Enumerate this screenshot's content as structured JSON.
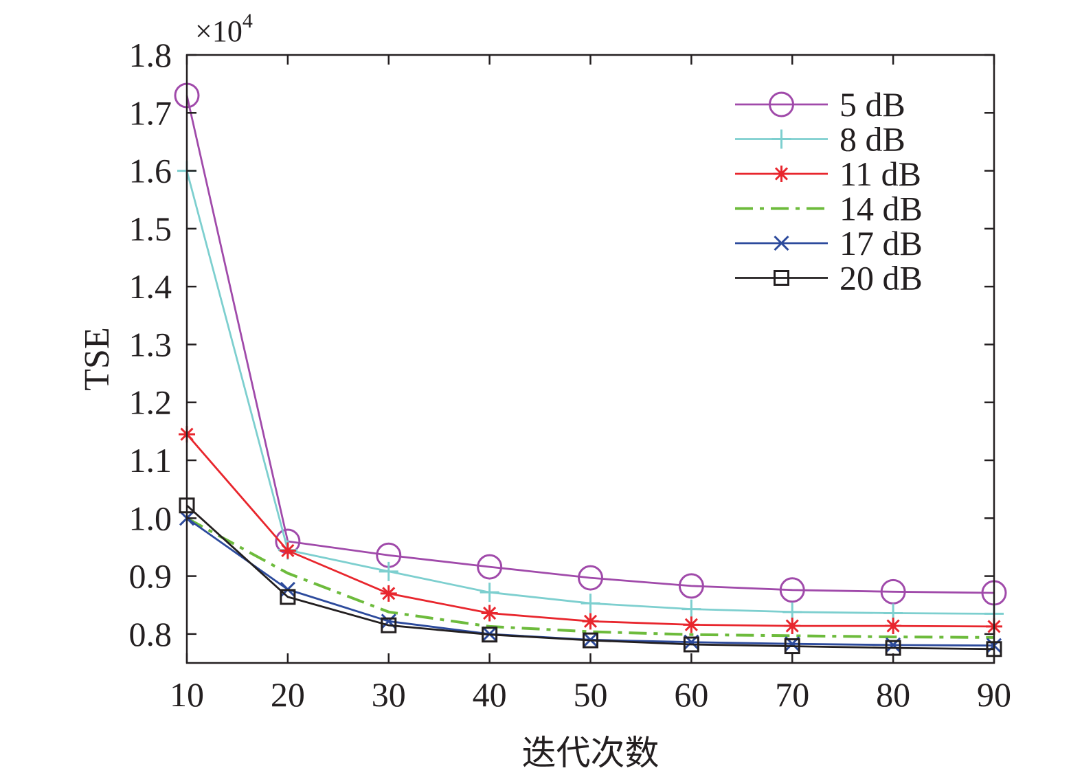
{
  "chart_data": {
    "type": "line",
    "xlabel": "迭代次数",
    "ylabel": "TSE",
    "y_multiplier": {
      "base": "×10",
      "exponent": "4"
    },
    "xlim": [
      10,
      90
    ],
    "ylim": [
      0.75,
      1.8
    ],
    "x_ticks": [
      10,
      20,
      30,
      40,
      50,
      60,
      70,
      80,
      90
    ],
    "x_tick_labels": [
      "10",
      "20",
      "30",
      "40",
      "50",
      "60",
      "70",
      "80",
      "90"
    ],
    "y_ticks": [
      0.8,
      0.9,
      1.0,
      1.1,
      1.2,
      1.3,
      1.4,
      1.5,
      1.6,
      1.7,
      1.8
    ],
    "y_tick_labels": [
      "0.8",
      "0.9",
      "1.0",
      "1.1",
      "1.2",
      "1.3",
      "1.4",
      "1.5",
      "1.6",
      "1.7",
      "1.8"
    ],
    "grid": false,
    "legend_position": "top-right",
    "x": [
      10,
      20,
      30,
      40,
      50,
      60,
      70,
      80,
      90
    ],
    "series": [
      {
        "name": "5 dB",
        "color": "#a04aaa",
        "marker": "circle",
        "dash": "solid",
        "values": [
          1.73,
          0.96,
          0.936,
          0.916,
          0.897,
          0.883,
          0.876,
          0.873,
          0.871
        ]
      },
      {
        "name": "8 dB",
        "color": "#7dcfcf",
        "marker": "plus",
        "dash": "solid",
        "values": [
          1.6,
          0.945,
          0.908,
          0.872,
          0.853,
          0.843,
          0.838,
          0.836,
          0.835
        ]
      },
      {
        "name": "11 dB",
        "color": "#e8262d",
        "marker": "asterisk",
        "dash": "solid",
        "values": [
          1.145,
          0.944,
          0.87,
          0.836,
          0.822,
          0.816,
          0.814,
          0.814,
          0.813
        ]
      },
      {
        "name": "14 dB",
        "color": "#6dbb3c",
        "marker": "none",
        "dash": "dashdot",
        "values": [
          1.0,
          0.905,
          0.838,
          0.813,
          0.804,
          0.799,
          0.797,
          0.795,
          0.794
        ]
      },
      {
        "name": "17 dB",
        "color": "#2c4a9c",
        "marker": "x",
        "dash": "solid",
        "values": [
          1.0,
          0.877,
          0.822,
          0.8,
          0.79,
          0.786,
          0.783,
          0.781,
          0.78
        ]
      },
      {
        "name": "20 dB",
        "color": "#231f20",
        "marker": "square",
        "dash": "solid",
        "values": [
          1.022,
          0.864,
          0.815,
          0.799,
          0.789,
          0.782,
          0.779,
          0.776,
          0.774
        ]
      }
    ]
  }
}
